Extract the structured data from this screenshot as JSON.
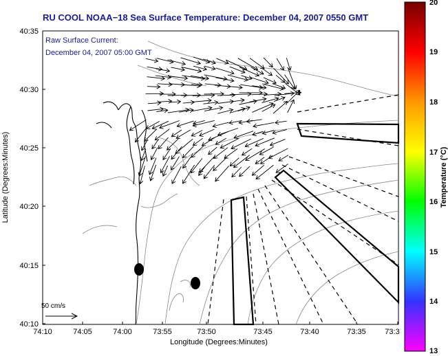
{
  "title": "RU COOL  NOAA−18  Sea Surface Temperature:  December 04, 2007 0550 GMT",
  "subtitle": {
    "line1": "Raw Surface Current:",
    "line2": "December 04, 2007 05:00 GMT"
  },
  "axes": {
    "xlabel": "Longitude (Degrees:Minutes)",
    "ylabel": "Latitude (Degrees:Minutes)",
    "x_ticks": [
      "74:10",
      "74:05",
      "74:00",
      "73:55",
      "73:50",
      "73:45",
      "73:40",
      "73:35",
      "73:3"
    ],
    "y_ticks": [
      "40:35",
      "40:30",
      "40:25",
      "40:20",
      "40:15",
      "40:10"
    ]
  },
  "colorbar": {
    "label": "Temperature (°C)",
    "min": 13,
    "max": 20,
    "ticks": [
      "20",
      "19",
      "18",
      "17",
      "16",
      "15",
      "14",
      "13"
    ],
    "colors": [
      "#ff00ff",
      "#3333ff",
      "#00ffff",
      "#00ff00",
      "#ffff00",
      "#ff9900",
      "#ff0000",
      "#770000"
    ]
  },
  "scale_bar": {
    "label": "50 cm/s"
  },
  "markers": [
    {
      "name": "station-marker-west",
      "lon": "74:01",
      "lat": "40:14.6"
    },
    {
      "name": "station-marker-east",
      "lon": "73:56.5",
      "lat": "40:13.5"
    }
  ],
  "colors": {
    "title": "#1a1aa0",
    "land": "#ffffff",
    "contour": "#888888",
    "coast": "#000000",
    "vectors": "#000000"
  }
}
